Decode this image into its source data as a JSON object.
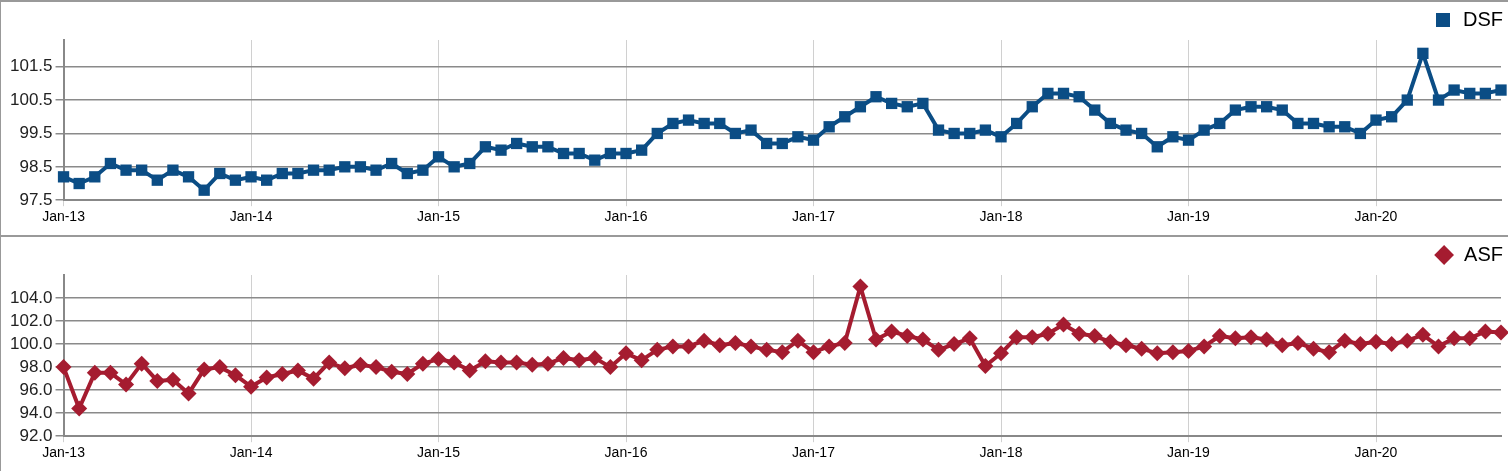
{
  "chart_data": [
    {
      "type": "line",
      "marker": "square",
      "line_style": "solid",
      "grid": true,
      "legend": "top right",
      "x": [
        "2013-01",
        "2013-02",
        "2013-03",
        "2013-04",
        "2013-05",
        "2013-06",
        "2013-07",
        "2013-08",
        "2013-09",
        "2013-10",
        "2013-11",
        "2013-12",
        "2014-01",
        "2014-02",
        "2014-03",
        "2014-04",
        "2014-05",
        "2014-06",
        "2014-07",
        "2014-08",
        "2014-09",
        "2014-10",
        "2014-11",
        "2014-12",
        "2015-01",
        "2015-02",
        "2015-03",
        "2015-04",
        "2015-05",
        "2015-06",
        "2015-07",
        "2015-08",
        "2015-09",
        "2015-10",
        "2015-11",
        "2015-12",
        "2016-01",
        "2016-02",
        "2016-03",
        "2016-04",
        "2016-05",
        "2016-06",
        "2016-07",
        "2016-08",
        "2016-09",
        "2016-10",
        "2016-11",
        "2016-12",
        "2017-01",
        "2017-02",
        "2017-03",
        "2017-04",
        "2017-05",
        "2017-06",
        "2017-07",
        "2017-08",
        "2017-09",
        "2017-10",
        "2017-11",
        "2017-12",
        "2018-01",
        "2018-02",
        "2018-03",
        "2018-04",
        "2018-05",
        "2018-06",
        "2018-07",
        "2018-08",
        "2018-09",
        "2018-10",
        "2018-11",
        "2018-12",
        "2019-01",
        "2019-02",
        "2019-03",
        "2019-04",
        "2019-05",
        "2019-06",
        "2019-07",
        "2019-08",
        "2019-09",
        "2019-10",
        "2019-11",
        "2019-12",
        "2020-01",
        "2020-02",
        "2020-03",
        "2020-04",
        "2020-05",
        "2020-06",
        "2020-07",
        "2020-08",
        "2020-09"
      ],
      "series": [
        {
          "name": "DSF",
          "color": "#0b4d85",
          "values": [
            98.2,
            98.0,
            98.2,
            98.6,
            98.4,
            98.4,
            98.1,
            98.4,
            98.2,
            97.8,
            98.3,
            98.1,
            98.2,
            98.1,
            98.3,
            98.3,
            98.4,
            98.4,
            98.5,
            98.5,
            98.4,
            98.6,
            98.3,
            98.4,
            98.8,
            98.5,
            98.6,
            99.1,
            99.0,
            99.2,
            99.1,
            99.1,
            98.9,
            98.9,
            98.7,
            98.9,
            98.9,
            99.0,
            99.5,
            99.8,
            99.9,
            99.8,
            99.8,
            99.5,
            99.6,
            99.2,
            99.2,
            99.4,
            99.3,
            99.7,
            100.0,
            100.3,
            100.6,
            100.4,
            100.3,
            100.4,
            99.6,
            99.5,
            99.5,
            99.6,
            99.4,
            99.8,
            100.3,
            100.7,
            100.7,
            100.6,
            100.2,
            99.8,
            99.6,
            99.5,
            99.1,
            99.4,
            99.3,
            99.6,
            99.8,
            100.2,
            100.3,
            100.3,
            100.2,
            99.8,
            99.8,
            99.7,
            99.7,
            99.5,
            99.9,
            100.0,
            100.5,
            101.9,
            100.5,
            100.8,
            100.7,
            100.7,
            100.8
          ]
        }
      ],
      "xlim": [
        "2013-01",
        "2020-09"
      ],
      "xticks": [
        {
          "value": "2013-01",
          "label": "Jan-13"
        },
        {
          "value": "2014-01",
          "label": "Jan-14"
        },
        {
          "value": "2015-01",
          "label": "Jan-15"
        },
        {
          "value": "2016-01",
          "label": "Jan-16"
        },
        {
          "value": "2017-01",
          "label": "Jan-17"
        },
        {
          "value": "2018-01",
          "label": "Jan-18"
        },
        {
          "value": "2019-01",
          "label": "Jan-19"
        },
        {
          "value": "2020-01",
          "label": "Jan-20"
        }
      ],
      "ylim": [
        97.5,
        102.3
      ],
      "yticks": [
        97.5,
        98.5,
        99.5,
        100.5,
        101.5
      ]
    },
    {
      "type": "line",
      "marker": "diamond",
      "line_style": "solid",
      "grid": true,
      "legend": "top right",
      "x": [
        "2013-01",
        "2013-02",
        "2013-03",
        "2013-04",
        "2013-05",
        "2013-06",
        "2013-07",
        "2013-08",
        "2013-09",
        "2013-10",
        "2013-11",
        "2013-12",
        "2014-01",
        "2014-02",
        "2014-03",
        "2014-04",
        "2014-05",
        "2014-06",
        "2014-07",
        "2014-08",
        "2014-09",
        "2014-10",
        "2014-11",
        "2014-12",
        "2015-01",
        "2015-02",
        "2015-03",
        "2015-04",
        "2015-05",
        "2015-06",
        "2015-07",
        "2015-08",
        "2015-09",
        "2015-10",
        "2015-11",
        "2015-12",
        "2016-01",
        "2016-02",
        "2016-03",
        "2016-04",
        "2016-05",
        "2016-06",
        "2016-07",
        "2016-08",
        "2016-09",
        "2016-10",
        "2016-11",
        "2016-12",
        "2017-01",
        "2017-02",
        "2017-03",
        "2017-04",
        "2017-05",
        "2017-06",
        "2017-07",
        "2017-08",
        "2017-09",
        "2017-10",
        "2017-11",
        "2017-12",
        "2018-01",
        "2018-02",
        "2018-03",
        "2018-04",
        "2018-05",
        "2018-06",
        "2018-07",
        "2018-08",
        "2018-09",
        "2018-10",
        "2018-11",
        "2018-12",
        "2019-01",
        "2019-02",
        "2019-03",
        "2019-04",
        "2019-05",
        "2019-06",
        "2019-07",
        "2019-08",
        "2019-09",
        "2019-10",
        "2019-11",
        "2019-12",
        "2020-01",
        "2020-02",
        "2020-03",
        "2020-04",
        "2020-05",
        "2020-06",
        "2020-07",
        "2020-08",
        "2020-09"
      ],
      "series": [
        {
          "name": "ASF",
          "color": "#a51c30",
          "values": [
            98.0,
            94.4,
            97.5,
            97.5,
            96.5,
            98.3,
            96.8,
            96.9,
            95.7,
            97.8,
            98.0,
            97.3,
            96.3,
            97.1,
            97.4,
            97.7,
            97.0,
            98.4,
            97.9,
            98.2,
            98.0,
            97.6,
            97.4,
            98.3,
            98.7,
            98.4,
            97.7,
            98.5,
            98.4,
            98.4,
            98.2,
            98.3,
            98.8,
            98.6,
            98.8,
            98.0,
            99.2,
            98.6,
            99.5,
            99.8,
            99.8,
            100.3,
            99.9,
            100.1,
            99.8,
            99.5,
            99.3,
            100.3,
            99.3,
            99.8,
            100.1,
            105.0,
            100.4,
            101.1,
            100.7,
            100.4,
            99.5,
            100.0,
            100.5,
            98.1,
            99.2,
            100.6,
            100.6,
            100.9,
            101.7,
            100.9,
            100.7,
            100.2,
            99.9,
            99.6,
            99.2,
            99.3,
            99.4,
            99.8,
            100.7,
            100.5,
            100.6,
            100.4,
            99.9,
            100.1,
            99.6,
            99.3,
            100.3,
            100.0,
            100.2,
            100.0,
            100.3,
            100.8,
            99.8,
            100.5,
            100.5,
            101.1,
            101.0
          ]
        }
      ],
      "xlim": [
        "2013-01",
        "2020-09"
      ],
      "xticks": [
        {
          "value": "2013-01",
          "label": "Jan-13"
        },
        {
          "value": "2014-01",
          "label": "Jan-14"
        },
        {
          "value": "2015-01",
          "label": "Jan-15"
        },
        {
          "value": "2016-01",
          "label": "Jan-16"
        },
        {
          "value": "2017-01",
          "label": "Jan-17"
        },
        {
          "value": "2018-01",
          "label": "Jan-18"
        },
        {
          "value": "2019-01",
          "label": "Jan-19"
        },
        {
          "value": "2020-01",
          "label": "Jan-20"
        }
      ],
      "ylim": [
        92,
        106
      ],
      "yticks": [
        {
          "value": 92,
          "label": "92.0"
        },
        {
          "value": 94,
          "label": "94.0"
        },
        {
          "value": 96,
          "label": "96.0"
        },
        {
          "value": 98,
          "label": "98.0"
        },
        {
          "value": 100,
          "label": "100.0"
        },
        {
          "value": 102,
          "label": "102.0"
        },
        {
          "value": 104,
          "label": "104.0"
        }
      ]
    }
  ]
}
